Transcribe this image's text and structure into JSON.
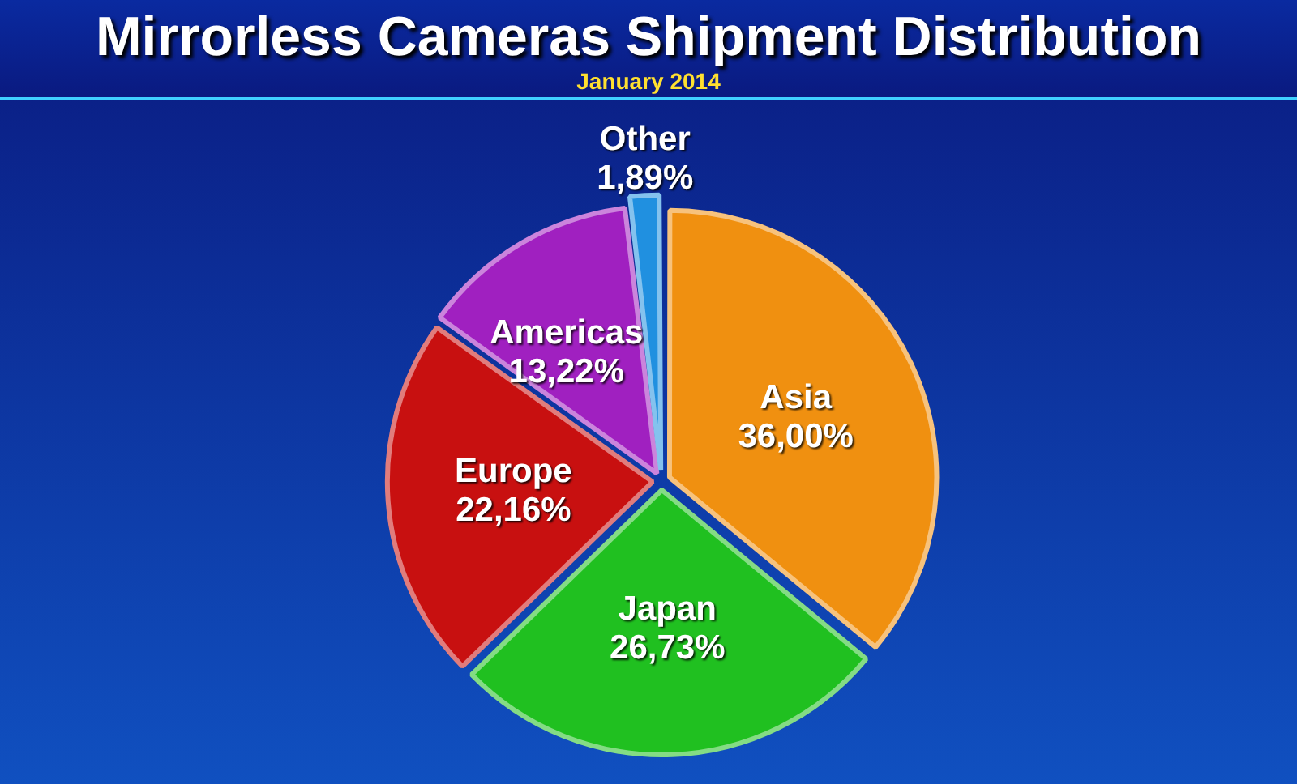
{
  "chart_data": {
    "type": "pie",
    "title": "Mirrorless Cameras Shipment Distribution",
    "subtitle": "January 2014",
    "categories": [
      "Asia",
      "Japan",
      "Europe",
      "Americas",
      "Other"
    ],
    "values": [
      36.0,
      26.73,
      22.16,
      13.22,
      1.89
    ],
    "value_labels": [
      "36,00%",
      "26,73%",
      "22,16%",
      "13,22%",
      "1,89%"
    ],
    "colors": [
      "#f09010",
      "#20c020",
      "#c81010",
      "#a020c0",
      "#2090e0"
    ],
    "legend": false
  }
}
